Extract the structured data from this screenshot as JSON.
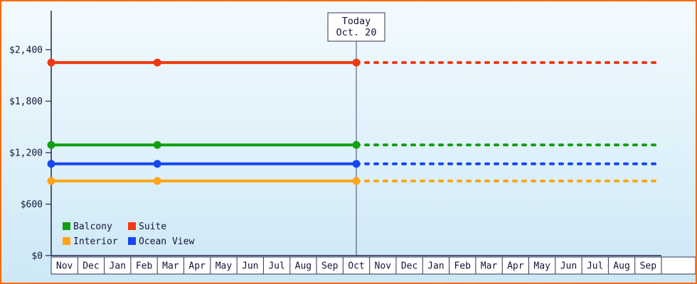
{
  "chart_data": {
    "type": "line",
    "title": "",
    "y_axis": {
      "tick_labels": [
        "$0",
        "$600",
        "$1,200",
        "$1,800",
        "$2,400"
      ],
      "tick_values": [
        0,
        600,
        1200,
        1800,
        2400
      ],
      "max_value": 2400
    },
    "x_axis": {
      "categories": [
        "Nov",
        "Dec",
        "Jan",
        "Feb",
        "Mar",
        "Apr",
        "May",
        "Jun",
        "Jul",
        "Aug",
        "Sep",
        "Oct",
        "Nov",
        "Dec",
        "Jan",
        "Feb",
        "Mar",
        "Apr",
        "May",
        "Jun",
        "Jul",
        "Aug",
        "Sep"
      ]
    },
    "today_marker": {
      "label_line1": "Today",
      "label_line2": "Oct. 20",
      "month_position": 11.5
    },
    "marker_month_positions": [
      0,
      4,
      11.5
    ],
    "series": [
      {
        "name": "Suite",
        "color": "#ee3912",
        "value": 2250
      },
      {
        "name": "Balcony",
        "color": "#12a012",
        "value": 1290
      },
      {
        "name": "Ocean View",
        "color": "#1747f0",
        "value": 1070
      },
      {
        "name": "Interior",
        "color": "#ffa519",
        "value": 870
      }
    ],
    "legend": {
      "rows": [
        [
          "Balcony",
          "Suite"
        ],
        [
          "Interior",
          "Ocean View"
        ]
      ]
    },
    "line_style": {
      "solid_before_today": true,
      "dashed_after_today": true
    },
    "colors": {
      "axis": "#23234a",
      "text": "#14143a",
      "cell_border": "#33335a",
      "cell_fill": "#ffffff",
      "today_line": "#44446a",
      "frame_border": "#ff6a00",
      "bg_top": "#f3fbff",
      "bg_bottom": "#cde8f6"
    }
  }
}
